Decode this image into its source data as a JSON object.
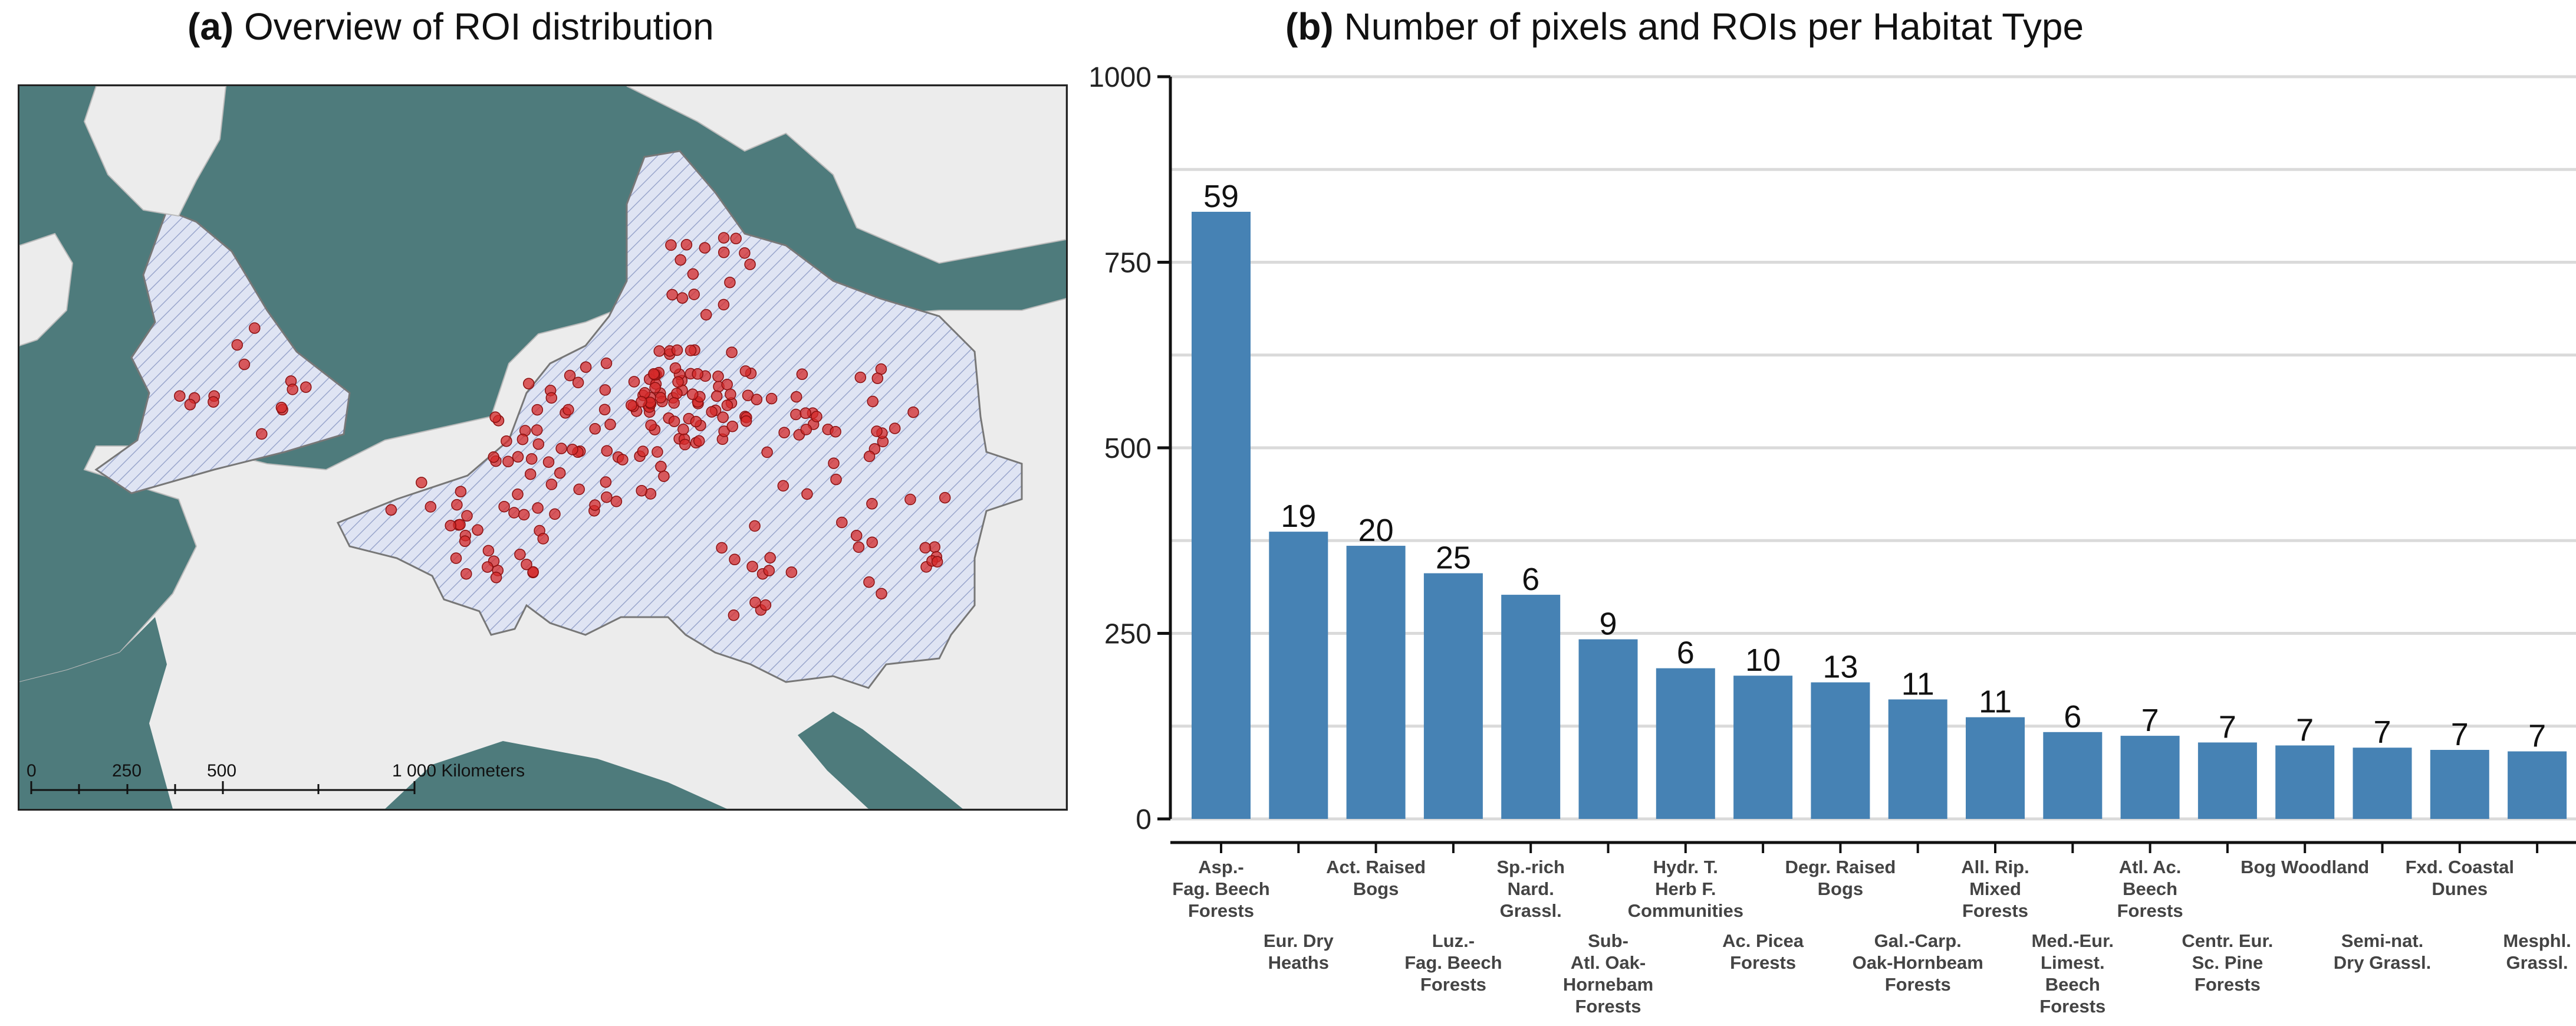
{
  "panel_a": {
    "prefix": "(a)",
    "title": "Overview of ROI distribution",
    "scale_bar": {
      "labels": [
        "0",
        "250",
        "500",
        "1 000 Kilometers"
      ]
    },
    "colors": {
      "sea": "#4e7b7c",
      "land": "#ececec",
      "study_area": "#dfe4f3",
      "hatch": "#9aa6cc",
      "roi": "#d42a2a"
    }
  },
  "panel_b": {
    "prefix": "(b)",
    "title": "Number of pixels and ROIs per Habitat Type"
  },
  "chart_data": {
    "type": "bar",
    "title": "Number of pixels and ROIs per Habitat Type",
    "xlabel": "",
    "ylabel": "",
    "ylim": [
      0,
      1000
    ],
    "yticks": [
      0,
      250,
      500,
      750,
      1000
    ],
    "grid": true,
    "bar_color": "#4682b4",
    "categories": [
      [
        "Asp.-",
        "Fag. Beech",
        "Forests"
      ],
      [
        "Eur. Dry",
        "Heaths"
      ],
      [
        "Act. Raised",
        "Bogs"
      ],
      [
        "Luz.-",
        "Fag. Beech",
        "Forests"
      ],
      [
        "Sp.-rich",
        "Nard.",
        "Grassl."
      ],
      [
        "Sub-",
        "Atl. Oak-",
        "Hornebam",
        "Forests"
      ],
      [
        "Hydr. T.",
        "Herb F.",
        "Communities"
      ],
      [
        "Ac. Picea",
        "Forests"
      ],
      [
        "Degr. Raised",
        "Bogs"
      ],
      [
        "Gal.-Carp.",
        "Oak-Hornbeam",
        "Forests"
      ],
      [
        "All. Rip.",
        "Mixed",
        "Forests"
      ],
      [
        "Med.-Eur.",
        "Limest.",
        "Beech",
        "Forests"
      ],
      [
        "Atl. Ac.",
        "Beech",
        "Forests"
      ],
      [
        "Centr. Eur.",
        "Sc. Pine",
        "Forests"
      ],
      [
        "Bog Woodland"
      ],
      [
        "Semi-nat.",
        "Dry Grassl."
      ],
      [
        "Fxd. Coastal",
        "Dunes"
      ],
      [
        "Mesphl.",
        "Grassl."
      ]
    ],
    "values": [
      818,
      387,
      368,
      331,
      302,
      242,
      203,
      193,
      184,
      161,
      137,
      117,
      112,
      103,
      99,
      96,
      93,
      91
    ],
    "roi_counts": [
      59,
      19,
      20,
      25,
      6,
      9,
      6,
      10,
      13,
      11,
      11,
      6,
      7,
      7,
      7,
      7,
      7,
      7
    ]
  }
}
